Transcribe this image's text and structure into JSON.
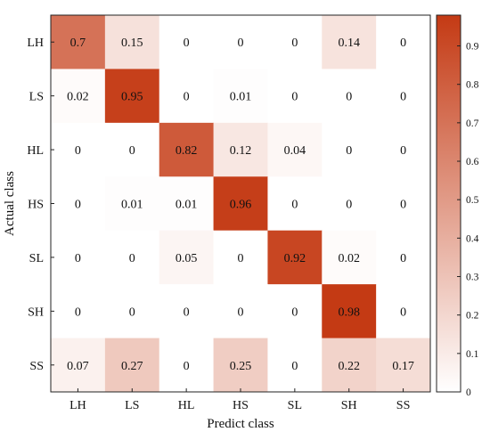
{
  "chart_data": {
    "type": "heatmap",
    "title": "",
    "xlabel": "Predict class",
    "ylabel": "Actual class",
    "x_categories": [
      "LH",
      "LS",
      "HL",
      "HS",
      "SL",
      "SH",
      "SS"
    ],
    "y_categories": [
      "LH",
      "LS",
      "HL",
      "HS",
      "SL",
      "SH",
      "SS"
    ],
    "values": [
      [
        0.7,
        0.15,
        0.0,
        0.0,
        0.0,
        0.14,
        0.0
      ],
      [
        0.02,
        0.95,
        0.0,
        0.01,
        0.0,
        0.0,
        0.0
      ],
      [
        0.0,
        0.0,
        0.82,
        0.12,
        0.04,
        0.0,
        0.0
      ],
      [
        0.0,
        0.01,
        0.01,
        0.96,
        0.0,
        0.0,
        0.0
      ],
      [
        0.0,
        0.0,
        0.05,
        0.0,
        0.92,
        0.02,
        0.0
      ],
      [
        0.0,
        0.0,
        0.0,
        0.0,
        0.0,
        0.98,
        0.0
      ],
      [
        0.07,
        0.27,
        0.0,
        0.25,
        0.0,
        0.22,
        0.17
      ]
    ],
    "cell_labels": [
      [
        "0.7",
        "0.15",
        "0",
        "0",
        "0",
        "0.14",
        "0"
      ],
      [
        "0.02",
        "0.95",
        "0",
        "0.01",
        "0",
        "0",
        "0"
      ],
      [
        "0",
        "0",
        "0.82",
        "0.12",
        "0.04",
        "0",
        "0"
      ],
      [
        "0",
        "0.01",
        "0.01",
        "0.96",
        "0",
        "0",
        "0"
      ],
      [
        "0",
        "0",
        "0.05",
        "0",
        "0.92",
        "0.02",
        "0"
      ],
      [
        "0",
        "0",
        "0",
        "0",
        "0",
        "0.98",
        "0"
      ],
      [
        "0.07",
        "0.27",
        "0",
        "0.25",
        "0",
        "0.22",
        "0.17"
      ]
    ],
    "colorbar": {
      "range": [
        0,
        0.98
      ],
      "ticks": [
        0,
        0.1,
        0.2,
        0.3,
        0.4,
        0.5,
        0.6,
        0.7,
        0.8,
        0.9
      ],
      "tick_labels": [
        "0",
        "0.1",
        "0.2",
        "0.3",
        "0.4",
        "0.5",
        "0.6",
        "0.7",
        "0.8",
        "0.9"
      ],
      "color_low": "#ffffff",
      "color_high": "#c43a14"
    },
    "grid": false,
    "colorbar_placement": "right"
  }
}
